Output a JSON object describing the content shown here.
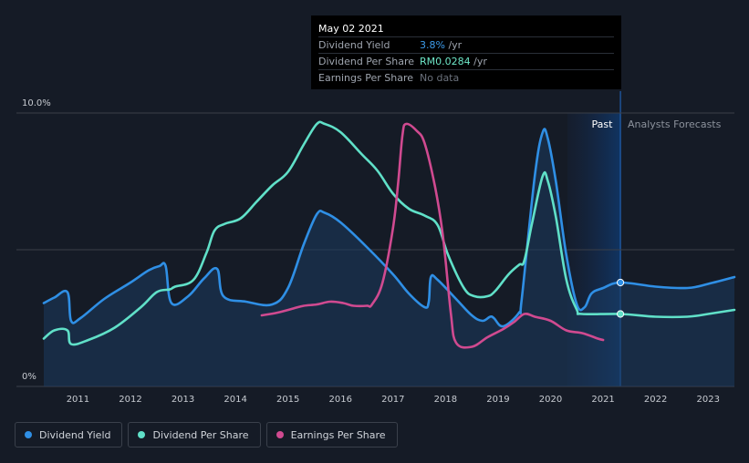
{
  "tooltip": {
    "date": "May 02 2021",
    "rows": [
      {
        "label": "Dividend Yield",
        "value": "3.8%",
        "suffix": " /yr",
        "color": "#3d9be9"
      },
      {
        "label": "Dividend Per Share",
        "value": "RM0.0284",
        "suffix": " /yr",
        "color": "#6ee7c8"
      },
      {
        "label": "Earnings Per Share",
        "value": "No data",
        "suffix": "",
        "color": "#6b717c"
      }
    ]
  },
  "regions": {
    "past_label": "Past",
    "forecast_label": "Analysts Forecasts",
    "divider_x": 2021.33
  },
  "legend": [
    {
      "label": "Dividend Yield",
      "color": "#2f8fe5"
    },
    {
      "label": "Dividend Per Share",
      "color": "#60e0c8"
    },
    {
      "label": "Earnings Per Share",
      "color": "#d04a90"
    }
  ],
  "chart_data": {
    "type": "line",
    "title": "",
    "xlabel": "",
    "ylabel": "",
    "xlim": [
      2010.35,
      2023.5
    ],
    "ylim": [
      0,
      10
    ],
    "y_ticks": [
      {
        "value": 10,
        "label": "10.0%"
      },
      {
        "value": 0,
        "label": "0%"
      }
    ],
    "y_gridlines": [
      10,
      5,
      0
    ],
    "x_ticks": [
      2011,
      2012,
      2013,
      2014,
      2015,
      2016,
      2017,
      2018,
      2019,
      2020,
      2021,
      2022,
      2023
    ],
    "series": [
      {
        "name": "Dividend Yield",
        "color": "#2f8fe5",
        "fill": true,
        "points": [
          [
            2010.35,
            3.05
          ],
          [
            2010.55,
            3.25
          ],
          [
            2010.8,
            3.45
          ],
          [
            2010.87,
            2.4
          ],
          [
            2011.05,
            2.5
          ],
          [
            2011.5,
            3.2
          ],
          [
            2012,
            3.8
          ],
          [
            2012.35,
            4.25
          ],
          [
            2012.55,
            4.4
          ],
          [
            2012.67,
            4.4
          ],
          [
            2012.78,
            3.05
          ],
          [
            2013.1,
            3.3
          ],
          [
            2013.4,
            3.95
          ],
          [
            2013.65,
            4.3
          ],
          [
            2013.77,
            3.3
          ],
          [
            2014.2,
            3.1
          ],
          [
            2014.7,
            3.0
          ],
          [
            2015,
            3.6
          ],
          [
            2015.3,
            5.2
          ],
          [
            2015.55,
            6.3
          ],
          [
            2015.7,
            6.35
          ],
          [
            2016,
            6.0
          ],
          [
            2016.5,
            5.1
          ],
          [
            2017,
            4.1
          ],
          [
            2017.3,
            3.4
          ],
          [
            2017.6,
            2.9
          ],
          [
            2017.68,
            3.1
          ],
          [
            2017.72,
            4.0
          ],
          [
            2017.85,
            3.9
          ],
          [
            2018.2,
            3.2
          ],
          [
            2018.5,
            2.6
          ],
          [
            2018.7,
            2.4
          ],
          [
            2018.85,
            2.55
          ],
          [
            2018.92,
            2.5
          ],
          [
            2019.1,
            2.2
          ],
          [
            2019.4,
            2.7
          ],
          [
            2019.45,
            3.2
          ],
          [
            2019.7,
            7.7
          ],
          [
            2019.85,
            9.3
          ],
          [
            2019.95,
            9.05
          ],
          [
            2020.1,
            7.5
          ],
          [
            2020.3,
            4.8
          ],
          [
            2020.5,
            3.0
          ],
          [
            2020.65,
            2.9
          ],
          [
            2020.78,
            3.4
          ],
          [
            2021.0,
            3.6
          ],
          [
            2021.33,
            3.8
          ],
          [
            2022,
            3.65
          ],
          [
            2022.6,
            3.6
          ],
          [
            2023,
            3.75
          ],
          [
            2023.5,
            4.0
          ]
        ]
      },
      {
        "name": "Dividend Per Share",
        "color": "#60e0c8",
        "fill": false,
        "points": [
          [
            2010.35,
            1.75
          ],
          [
            2010.55,
            2.05
          ],
          [
            2010.8,
            2.05
          ],
          [
            2010.87,
            1.55
          ],
          [
            2011.2,
            1.7
          ],
          [
            2011.7,
            2.15
          ],
          [
            2012.2,
            2.9
          ],
          [
            2012.5,
            3.45
          ],
          [
            2012.75,
            3.55
          ],
          [
            2012.85,
            3.65
          ],
          [
            2013.2,
            3.9
          ],
          [
            2013.45,
            4.9
          ],
          [
            2013.6,
            5.7
          ],
          [
            2013.8,
            5.95
          ],
          [
            2014.1,
            6.15
          ],
          [
            2014.4,
            6.75
          ],
          [
            2014.7,
            7.35
          ],
          [
            2015,
            7.85
          ],
          [
            2015.3,
            8.85
          ],
          [
            2015.55,
            9.6
          ],
          [
            2015.7,
            9.6
          ],
          [
            2016,
            9.3
          ],
          [
            2016.4,
            8.5
          ],
          [
            2016.7,
            7.9
          ],
          [
            2017,
            7.05
          ],
          [
            2017.3,
            6.5
          ],
          [
            2017.6,
            6.25
          ],
          [
            2017.85,
            5.9
          ],
          [
            2018.05,
            4.8
          ],
          [
            2018.35,
            3.6
          ],
          [
            2018.55,
            3.3
          ],
          [
            2018.8,
            3.3
          ],
          [
            2018.95,
            3.5
          ],
          [
            2019.2,
            4.1
          ],
          [
            2019.4,
            4.45
          ],
          [
            2019.5,
            4.6
          ],
          [
            2019.65,
            6.0
          ],
          [
            2019.85,
            7.7
          ],
          [
            2019.95,
            7.5
          ],
          [
            2020.1,
            6.2
          ],
          [
            2020.3,
            3.9
          ],
          [
            2020.5,
            2.8
          ],
          [
            2020.6,
            2.65
          ],
          [
            2021.33,
            2.65
          ],
          [
            2022,
            2.55
          ],
          [
            2022.6,
            2.55
          ],
          [
            2023,
            2.65
          ],
          [
            2023.5,
            2.8
          ]
        ]
      },
      {
        "name": "Earnings Per Share",
        "color": "#d04a90",
        "fill": false,
        "points": [
          [
            2014.5,
            2.6
          ],
          [
            2014.8,
            2.7
          ],
          [
            2015.1,
            2.85
          ],
          [
            2015.3,
            2.95
          ],
          [
            2015.55,
            3.0
          ],
          [
            2015.8,
            3.1
          ],
          [
            2016.05,
            3.05
          ],
          [
            2016.25,
            2.95
          ],
          [
            2016.5,
            2.95
          ],
          [
            2016.6,
            3.0
          ],
          [
            2016.8,
            3.8
          ],
          [
            2017.0,
            5.8
          ],
          [
            2017.1,
            7.5
          ],
          [
            2017.18,
            9.2
          ],
          [
            2017.25,
            9.6
          ],
          [
            2017.45,
            9.35
          ],
          [
            2017.6,
            8.9
          ],
          [
            2017.8,
            7.3
          ],
          [
            2017.95,
            5.5
          ],
          [
            2018.1,
            2.7
          ],
          [
            2018.2,
            1.6
          ],
          [
            2018.5,
            1.45
          ],
          [
            2018.8,
            1.8
          ],
          [
            2019.1,
            2.1
          ],
          [
            2019.3,
            2.35
          ],
          [
            2019.5,
            2.65
          ],
          [
            2019.7,
            2.55
          ],
          [
            2020.0,
            2.4
          ],
          [
            2020.3,
            2.05
          ],
          [
            2020.6,
            1.95
          ],
          [
            2020.9,
            1.75
          ],
          [
            2021.0,
            1.7
          ]
        ]
      }
    ],
    "highlight_points": [
      {
        "series": "Dividend Yield",
        "x": 2021.33,
        "y": 3.8
      },
      {
        "series": "Dividend Per Share",
        "x": 2021.33,
        "y": 2.65
      }
    ]
  }
}
